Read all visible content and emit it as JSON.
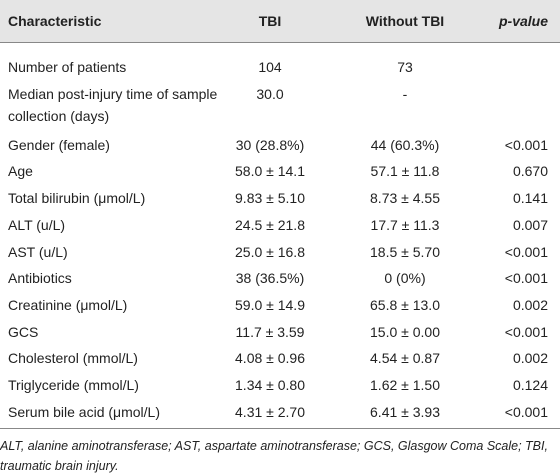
{
  "table": {
    "header": [
      "Characteristic",
      "TBI",
      "Without TBI",
      "p-value"
    ],
    "rows": [
      [
        "Number of patients",
        "104",
        "73",
        null
      ],
      [
        "Median post-injury time of sample collection (days)",
        "30.0",
        "-",
        null
      ],
      [
        "Gender (female)",
        "30 (28.8%)",
        "44 (60.3%)",
        "<0.001"
      ],
      [
        "Age",
        "58.0 ± 14.1",
        "57.1 ± 11.8",
        "0.670"
      ],
      [
        "Total bilirubin (μmol/L)",
        "9.83 ± 5.10",
        "8.73 ± 4.55",
        "0.141"
      ],
      [
        "ALT (u/L)",
        "24.5 ± 21.8",
        "17.7 ± 11.3",
        "0.007"
      ],
      [
        "AST (u/L)",
        "25.0 ± 16.8",
        "18.5 ± 5.70",
        "<0.001"
      ],
      [
        "Antibiotics",
        "38 (36.5%)",
        "0 (0%)",
        "<0.001"
      ],
      [
        "Creatinine (μmol/L)",
        "59.0 ± 14.9",
        "65.8 ± 13.0",
        "0.002"
      ],
      [
        "GCS",
        "11.7 ± 3.59",
        "15.0 ± 0.00",
        "<0.001"
      ],
      [
        "Cholesterol (mmol/L)",
        "4.08 ± 0.96",
        "4.54 ± 0.87",
        "0.002"
      ],
      [
        "Triglyceride (mmol/L)",
        "1.34 ± 0.80",
        "1.62 ± 1.50",
        "0.124"
      ],
      [
        "Serum bile acid (μmol/L)",
        "4.31 ± 2.70",
        "6.41 ± 3.93",
        "<0.001"
      ]
    ]
  },
  "footnote": "ALT, alanine aminotransferase; AST, aspartate aminotransferase; GCS, Glasgow Coma Scale; TBI, traumatic brain injury."
}
